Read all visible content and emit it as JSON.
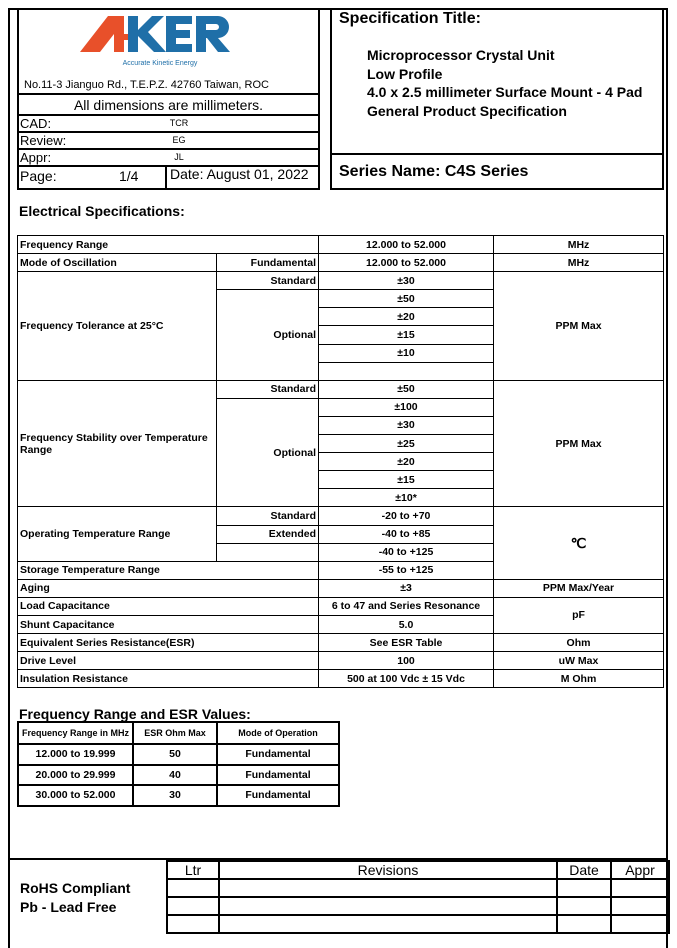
{
  "header": {
    "logo_text": "AKER",
    "logo_tagline": "Accurate Kinetic Energy",
    "brand_colors": {
      "red": "#e8502a",
      "blue": "#1f6fa8"
    },
    "address": "No.11-3 Jianguo Rd., T.E.P.Z. 42760 Taiwan, ROC",
    "dimensions_note": "All dimensions are millimeters.",
    "cad_label": "CAD:",
    "cad_value": "TCR",
    "review_label": "Review:",
    "review_value": "EG",
    "appr_label": "Appr:",
    "appr_value": "JL",
    "page_label": "Page:",
    "page_value": "1/4",
    "date": "Date: August 01, 2022",
    "spec_title_label": "Specification Title:",
    "spec_lines": [
      "Microprocessor Crystal Unit",
      "Low Profile",
      "4.0 x 2.5 millimeter Surface Mount - 4 Pad",
      "General Product Specification"
    ],
    "series_name": "Series Name: C4S Series"
  },
  "electrical": {
    "heading": "Electrical Specifications:",
    "freq_range": {
      "label": "Frequency Range",
      "value": "12.000 to 52.000",
      "unit": "MHz"
    },
    "mode": {
      "label": "Mode of Oscillation",
      "sub": "Fundamental",
      "value": "12.000 to 52.000",
      "unit": "MHz"
    },
    "tolerance": {
      "label": "Frequency Tolerance at 25°C",
      "standard": "Standard",
      "optional": "Optional",
      "values": [
        "±30",
        "±50",
        "±20",
        "±15",
        "±10"
      ],
      "unit": "PPM Max"
    },
    "stability": {
      "label": "Frequency Stability over Temperature Range",
      "standard": "Standard",
      "optional": "Optional",
      "values": [
        "±50",
        "±100",
        "±30",
        "±25",
        "±20",
        "±15",
        "±10*"
      ],
      "unit": "PPM Max"
    },
    "op_temp": {
      "label": "Operating Temperature Range",
      "standard": "Standard",
      "extended": "Extended",
      "values": [
        "-20 to +70",
        "-40 to +85",
        "-40 to +125"
      ],
      "unit": "℃"
    },
    "storage": {
      "label": "Storage Temperature Range",
      "value": "-55 to +125"
    },
    "aging": {
      "label": "Aging",
      "value": "±3",
      "unit": "PPM Max/Year"
    },
    "load": {
      "label": "Load Capacitance",
      "value": "6 to 47 and Series Resonance",
      "unit": "pF"
    },
    "shunt": {
      "label": "Shunt Capacitance",
      "value": "5.0"
    },
    "esr": {
      "label": "Equivalent Series Resistance(ESR)",
      "value": "See ESR Table",
      "unit": "Ohm"
    },
    "drive": {
      "label": "Drive Level",
      "value": "100",
      "unit": "uW Max"
    },
    "insulation": {
      "label": "Insulation Resistance",
      "value": "500 at 100 Vdc ± 15 Vdc",
      "unit": "M Ohm"
    }
  },
  "esr_table": {
    "heading": "Frequency Range and ESR Values:",
    "columns": [
      "Frequency Range in MHz",
      "ESR Ohm Max",
      "Mode of Operation"
    ],
    "rows": [
      [
        "12.000 to 19.999",
        "50",
        "Fundamental"
      ],
      [
        "20.000 to 29.999",
        "40",
        "Fundamental"
      ],
      [
        "30.000 to 52.000",
        "30",
        "Fundamental"
      ]
    ]
  },
  "footer": {
    "rohs": "RoHS Compliant",
    "pb": "Pb - Lead Free",
    "columns": [
      "Ltr",
      "Revisions",
      "Date",
      "Appr"
    ]
  }
}
